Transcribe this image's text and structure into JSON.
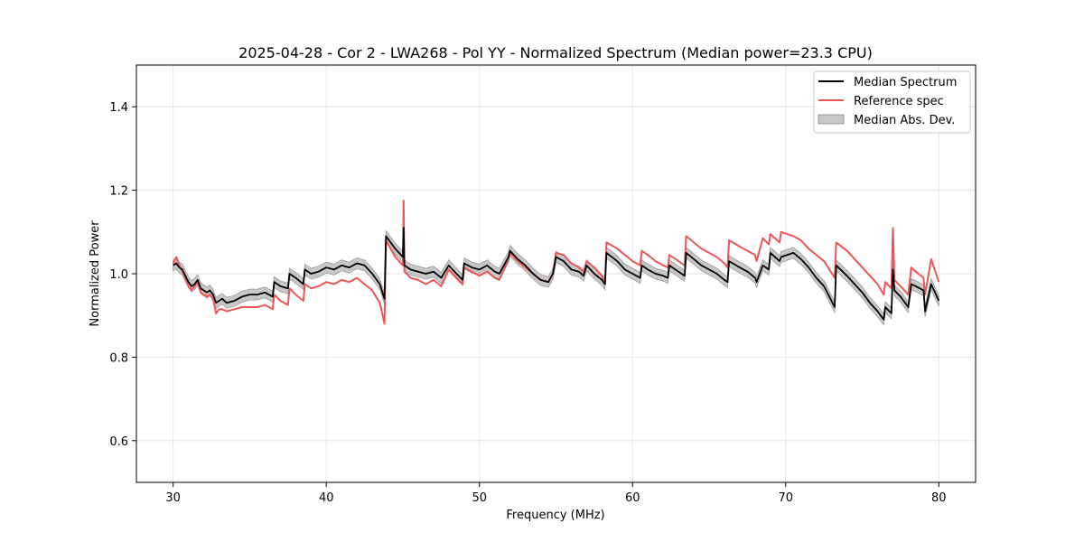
{
  "chart_data": {
    "type": "line",
    "title": "2025-04-28 - Cor 2 - LWA268 - Pol YY - Normalized Spectrum (Median power=23.3 CPU)",
    "xlabel": "Frequency (MHz)",
    "ylabel": "Normalized Power",
    "xlim": [
      27.6,
      82.4
    ],
    "ylim": [
      0.5,
      1.5
    ],
    "xticks": [
      30,
      40,
      50,
      60,
      70,
      80
    ],
    "yticks": [
      0.6,
      0.8,
      1.0,
      1.2,
      1.4
    ],
    "xtick_labels": [
      "30",
      "40",
      "50",
      "60",
      "70",
      "80"
    ],
    "ytick_labels": [
      "0.6",
      "0.8",
      "1.0",
      "1.2",
      "1.4"
    ],
    "grid": true,
    "legend_position": "top-right",
    "colors": {
      "median": "#000000",
      "reference": "#ee5555",
      "mad_fill": "#c8c8c8",
      "mad_edge": "#9a9a9a",
      "grid": "#e6e6e6"
    },
    "series": [
      {
        "name": "Median Spectrum",
        "x": [
          30.0,
          30.2,
          30.4,
          30.6,
          30.8,
          31.0,
          31.2,
          31.4,
          31.6,
          31.8,
          32.0,
          32.2,
          32.4,
          32.6,
          32.8,
          33.0,
          33.2,
          33.5,
          34.0,
          34.5,
          35.0,
          35.5,
          36.0,
          36.5,
          36.6,
          37.0,
          37.5,
          37.6,
          38.0,
          38.5,
          38.6,
          39.0,
          39.5,
          40.0,
          40.5,
          41.0,
          41.5,
          42.0,
          42.5,
          43.0,
          43.5,
          43.8,
          43.9,
          44.5,
          45.0,
          45.05,
          45.1,
          45.5,
          46.0,
          46.5,
          47.0,
          47.5,
          48.0,
          48.5,
          48.9,
          49.0,
          49.5,
          50.0,
          50.5,
          51.0,
          51.3,
          51.9,
          52.0,
          52.5,
          53.0,
          53.5,
          54.0,
          54.5,
          54.8,
          55.0,
          55.5,
          56.0,
          56.5,
          56.8,
          57.0,
          57.5,
          58.0,
          58.2,
          58.3,
          59.0,
          59.5,
          60.0,
          60.5,
          60.6,
          61.0,
          61.5,
          62.0,
          62.3,
          62.4,
          63.0,
          63.4,
          63.5,
          64.0,
          64.5,
          65.0,
          65.5,
          66.0,
          66.2,
          66.3,
          67.0,
          67.5,
          68.0,
          68.1,
          68.5,
          68.9,
          69.0,
          69.6,
          69.7,
          70.5,
          71.0,
          71.5,
          72.0,
          72.5,
          73.2,
          73.3,
          74.0,
          74.5,
          75.0,
          75.5,
          76.0,
          76.4,
          76.5,
          76.9,
          77.0,
          77.1,
          77.5,
          78.0,
          78.2,
          78.5,
          79.0,
          79.1,
          79.5,
          80.0
        ],
        "values": [
          1.02,
          1.025,
          1.015,
          1.01,
          0.995,
          0.98,
          0.97,
          0.975,
          0.985,
          0.965,
          0.96,
          0.955,
          0.96,
          0.95,
          0.93,
          0.935,
          0.94,
          0.93,
          0.935,
          0.945,
          0.95,
          0.95,
          0.955,
          0.945,
          0.98,
          0.97,
          0.965,
          1.0,
          0.99,
          0.975,
          1.01,
          1.0,
          1.005,
          1.015,
          1.01,
          1.02,
          1.015,
          1.025,
          1.02,
          1.0,
          0.975,
          0.94,
          1.09,
          1.06,
          1.04,
          1.11,
          1.02,
          1.01,
          1.005,
          1.0,
          1.005,
          0.99,
          1.02,
          1.0,
          0.985,
          1.025,
          1.015,
          1.01,
          1.02,
          1.005,
          1.0,
          1.04,
          1.055,
          1.035,
          1.02,
          1.0,
          0.985,
          0.98,
          1.0,
          1.04,
          1.03,
          1.01,
          1.005,
          0.995,
          1.02,
          1.0,
          0.985,
          0.975,
          1.05,
          1.03,
          1.01,
          1.0,
          0.99,
          1.02,
          1.01,
          1.0,
          0.995,
          0.99,
          1.02,
          1.005,
          0.995,
          1.05,
          1.035,
          1.02,
          1.01,
          1.0,
          0.985,
          0.98,
          1.03,
          1.015,
          1.005,
          0.99,
          0.98,
          1.02,
          1.01,
          1.05,
          1.03,
          1.04,
          1.05,
          1.035,
          1.015,
          0.99,
          0.97,
          0.92,
          1.02,
          0.995,
          0.975,
          0.955,
          0.93,
          0.91,
          0.89,
          0.92,
          0.905,
          1.01,
          0.96,
          0.945,
          0.92,
          0.975,
          0.97,
          0.96,
          0.91,
          0.975,
          0.935
        ],
        "mad_halfwidth": 0.013
      },
      {
        "name": "Reference spec",
        "x": [
          30.0,
          30.2,
          30.4,
          30.6,
          30.8,
          31.0,
          31.2,
          31.4,
          31.6,
          31.8,
          32.0,
          32.2,
          32.4,
          32.6,
          32.8,
          33.0,
          33.2,
          33.5,
          34.0,
          34.5,
          35.0,
          35.5,
          36.0,
          36.5,
          36.6,
          37.0,
          37.5,
          37.6,
          38.0,
          38.5,
          38.6,
          39.0,
          39.5,
          40.0,
          40.5,
          41.0,
          41.5,
          42.0,
          42.5,
          43.0,
          43.5,
          43.8,
          43.9,
          44.5,
          45.0,
          45.05,
          45.1,
          45.5,
          46.0,
          46.5,
          47.0,
          47.5,
          48.0,
          48.5,
          48.9,
          49.0,
          49.5,
          50.0,
          50.5,
          51.0,
          51.3,
          51.9,
          52.0,
          52.5,
          53.0,
          53.5,
          54.0,
          54.5,
          54.8,
          55.0,
          55.5,
          56.0,
          56.5,
          56.8,
          57.0,
          57.5,
          58.0,
          58.2,
          58.3,
          59.0,
          59.5,
          60.0,
          60.5,
          60.6,
          61.0,
          61.5,
          62.0,
          62.3,
          62.4,
          63.0,
          63.4,
          63.5,
          64.0,
          64.5,
          65.0,
          65.5,
          66.0,
          66.2,
          66.3,
          67.0,
          67.5,
          68.0,
          68.1,
          68.5,
          68.9,
          69.0,
          69.6,
          69.7,
          70.5,
          71.0,
          71.5,
          72.0,
          72.5,
          73.2,
          73.3,
          74.0,
          74.5,
          75.0,
          75.5,
          76.0,
          76.4,
          76.5,
          76.9,
          77.0,
          77.1,
          77.5,
          78.0,
          78.2,
          78.5,
          79.0,
          79.1,
          79.5,
          80.0
        ],
        "values": [
          1.025,
          1.04,
          1.02,
          1.005,
          0.99,
          0.97,
          0.96,
          0.97,
          0.98,
          0.955,
          0.95,
          0.945,
          0.95,
          0.94,
          0.905,
          0.915,
          0.915,
          0.91,
          0.915,
          0.92,
          0.92,
          0.92,
          0.925,
          0.915,
          0.95,
          0.935,
          0.925,
          0.965,
          0.95,
          0.935,
          0.975,
          0.965,
          0.97,
          0.98,
          0.975,
          0.985,
          0.98,
          0.99,
          0.975,
          0.96,
          0.93,
          0.88,
          1.08,
          1.04,
          1.02,
          1.175,
          1.005,
          0.99,
          0.985,
          0.975,
          0.985,
          0.97,
          1.01,
          0.99,
          0.975,
          1.015,
          1.005,
          0.995,
          1.005,
          0.99,
          0.985,
          1.035,
          1.05,
          1.03,
          1.015,
          1.0,
          0.985,
          0.98,
          1.0,
          1.05,
          1.045,
          1.025,
          1.015,
          1.005,
          1.03,
          1.015,
          0.995,
          0.975,
          1.075,
          1.06,
          1.045,
          1.03,
          1.02,
          1.055,
          1.045,
          1.03,
          1.02,
          1.015,
          1.045,
          1.03,
          1.02,
          1.09,
          1.075,
          1.06,
          1.05,
          1.04,
          1.025,
          1.015,
          1.08,
          1.065,
          1.055,
          1.045,
          1.03,
          1.085,
          1.07,
          1.095,
          1.075,
          1.1,
          1.09,
          1.08,
          1.06,
          1.045,
          1.03,
          0.99,
          1.075,
          1.055,
          1.035,
          1.015,
          0.995,
          0.975,
          0.95,
          0.98,
          0.965,
          1.11,
          0.985,
          0.97,
          0.95,
          1.015,
          1.005,
          0.99,
          0.95,
          1.035,
          0.98
        ]
      },
      {
        "name": "Median Abs. Dev."
      }
    ]
  }
}
